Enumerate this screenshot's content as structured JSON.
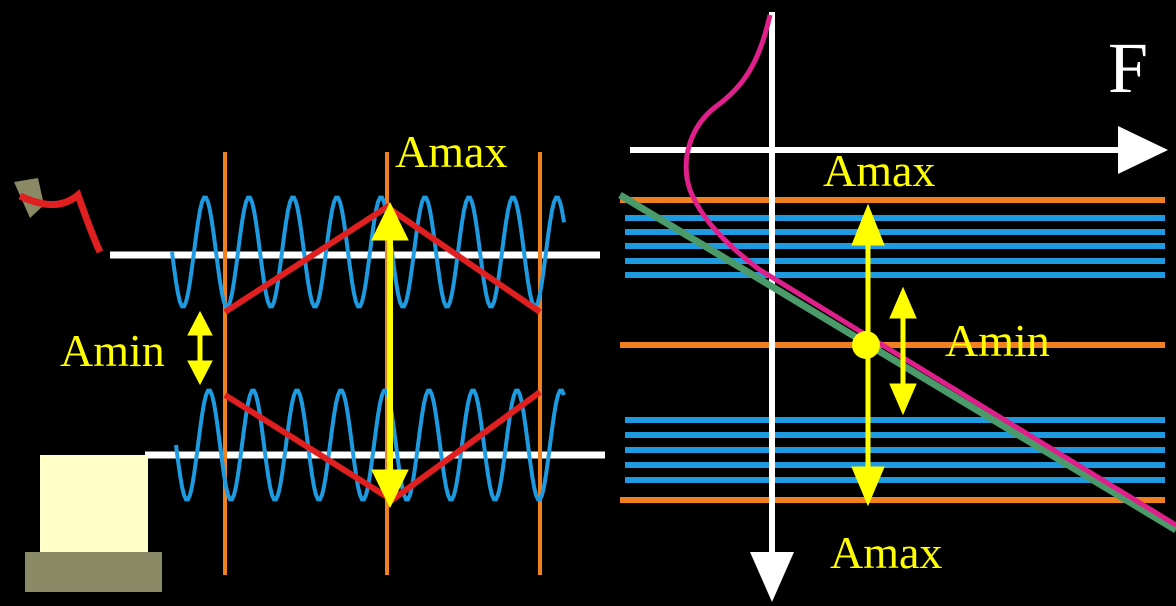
{
  "left_panel": {
    "amax_label": "Amax",
    "amin_label": "Amin"
  },
  "right_panel": {
    "force_label": "F",
    "top_amax_label": "Amax",
    "amin_label": "Amin",
    "bottom_amax_label": "Amax"
  }
}
